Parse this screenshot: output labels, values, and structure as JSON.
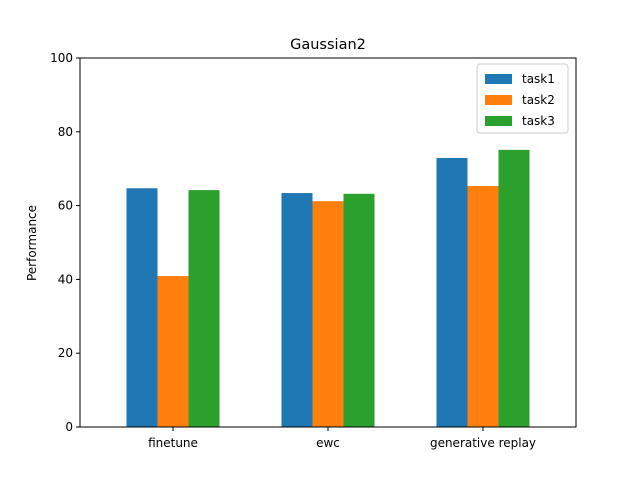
{
  "chart_data": {
    "type": "bar",
    "title": "Gaussian2",
    "xlabel": "",
    "ylabel": "Performance",
    "ylim": [
      0,
      100
    ],
    "yticks": [
      0,
      20,
      40,
      60,
      80,
      100
    ],
    "categories": [
      "finetune",
      "ewc",
      "generative replay"
    ],
    "series": [
      {
        "name": "task1",
        "color": "#1f77b4",
        "values": [
          64.7,
          63.4,
          72.9
        ]
      },
      {
        "name": "task2",
        "color": "#ff7f0e",
        "values": [
          40.9,
          61.2,
          65.3
        ]
      },
      {
        "name": "task3",
        "color": "#2ca02c",
        "values": [
          64.2,
          63.2,
          75.1
        ]
      }
    ],
    "grid": false,
    "legend_position": "top-right"
  }
}
